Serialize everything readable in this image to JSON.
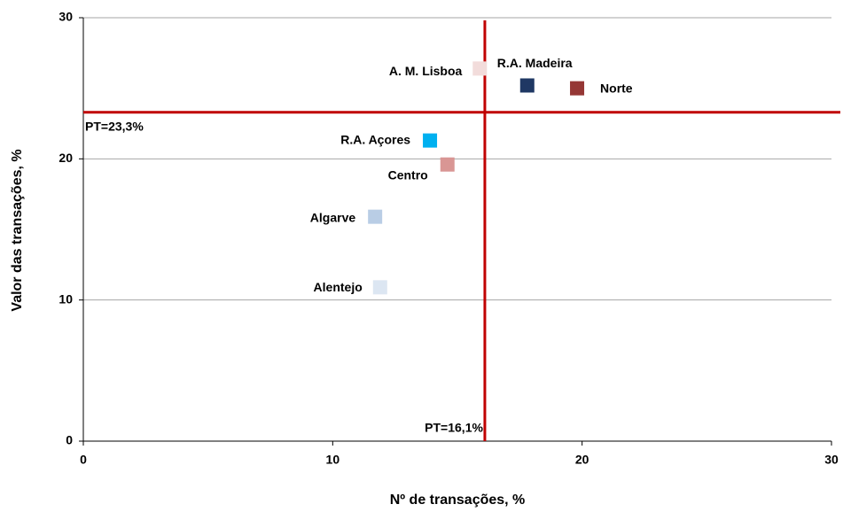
{
  "chart_data": {
    "type": "scatter",
    "x_label": "Nº de transações, %",
    "y_label": "Valor das transações, %",
    "xlim": [
      0,
      30
    ],
    "xticks": [
      0,
      10,
      20,
      30
    ],
    "ylim": [
      0,
      30
    ],
    "yticks": [
      0,
      10,
      20,
      30
    ],
    "grid": true,
    "series": [
      {
        "name": "A. M. Lisboa",
        "color": "#f2dcdb",
        "x": [
          15.9
        ],
        "values": [
          26.4
        ]
      },
      {
        "name": "R.A. Madeira",
        "color": "#1f3864",
        "x": [
          17.8
        ],
        "values": [
          25.2
        ]
      },
      {
        "name": "Norte",
        "color": "#953735",
        "x": [
          19.8
        ],
        "values": [
          25.0
        ]
      },
      {
        "name": "R.A. Açores",
        "color": "#00b0f0",
        "x": [
          13.9
        ],
        "values": [
          21.3
        ]
      },
      {
        "name": "Centro",
        "color": "#d99694",
        "x": [
          14.6
        ],
        "values": [
          19.6
        ]
      },
      {
        "name": "Algarve",
        "color": "#b9cde5",
        "x": [
          11.7
        ],
        "values": [
          15.9
        ]
      },
      {
        "name": "Alentejo",
        "color": "#dce6f2",
        "x": [
          11.9
        ],
        "values": [
          10.9
        ]
      }
    ],
    "ref_lines": [
      {
        "axis": "x",
        "value": 16.1,
        "label": "PT=16,1%",
        "color": "#c00000"
      },
      {
        "axis": "y",
        "value": 23.3,
        "label": "PT=23,3%",
        "color": "#c00000"
      }
    ]
  }
}
